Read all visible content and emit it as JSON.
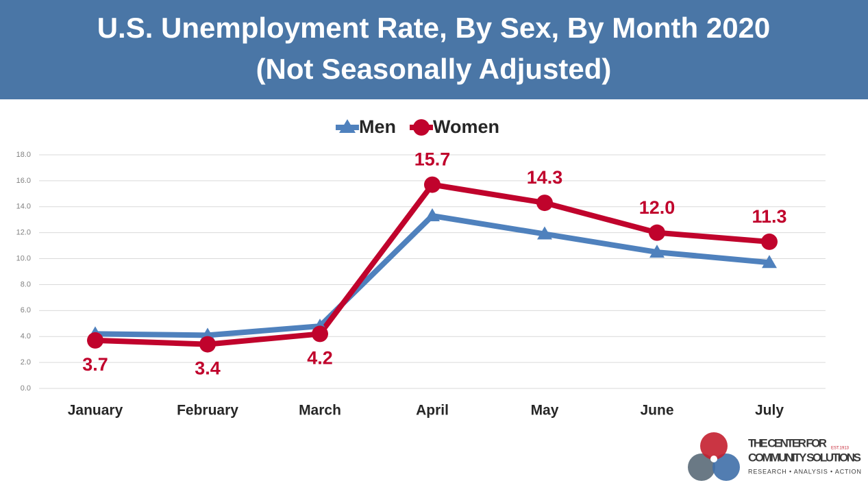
{
  "chart_data": {
    "type": "line",
    "title": "U.S. Unemployment Rate, By Sex, By Month 2020",
    "subtitle": "(Not Seasonally Adjusted)",
    "categories": [
      "January",
      "February",
      "March",
      "April",
      "May",
      "June",
      "July"
    ],
    "series": [
      {
        "name": "Men",
        "color": "#4f81bd",
        "marker": "triangle",
        "values": [
          4.2,
          4.1,
          4.8,
          13.3,
          11.9,
          10.5,
          9.7
        ]
      },
      {
        "name": "Women",
        "color": "#c0032c",
        "marker": "circle",
        "values": [
          3.7,
          3.4,
          4.2,
          15.7,
          14.3,
          12.0,
          11.3
        ],
        "value_labels": [
          "3.7",
          "3.4",
          "4.2",
          "15.7",
          "14.3",
          "12.0",
          "11.3"
        ]
      }
    ],
    "ylim": [
      0,
      18
    ],
    "yticks": [
      {
        "value": 0,
        "label": "0.0"
      },
      {
        "value": 2,
        "label": "2.0"
      },
      {
        "value": 4,
        "label": "4.0"
      },
      {
        "value": 6,
        "label": "6.0"
      },
      {
        "value": 8,
        "label": "8.0"
      },
      {
        "value": 10,
        "label": "10.0"
      },
      {
        "value": 12,
        "label": "12.0"
      },
      {
        "value": 14,
        "label": "14.0"
      },
      {
        "value": 16,
        "label": "16.0"
      },
      {
        "value": 18,
        "label": "18.0"
      }
    ],
    "grid": true,
    "legend": "top"
  },
  "logo": {
    "line1": "THE CENTER FOR",
    "line2": "COMMUNITY SOLUTIONS",
    "est": "EST.1913",
    "tagline": "RESEARCH • ANALYSIS • ACTION"
  }
}
